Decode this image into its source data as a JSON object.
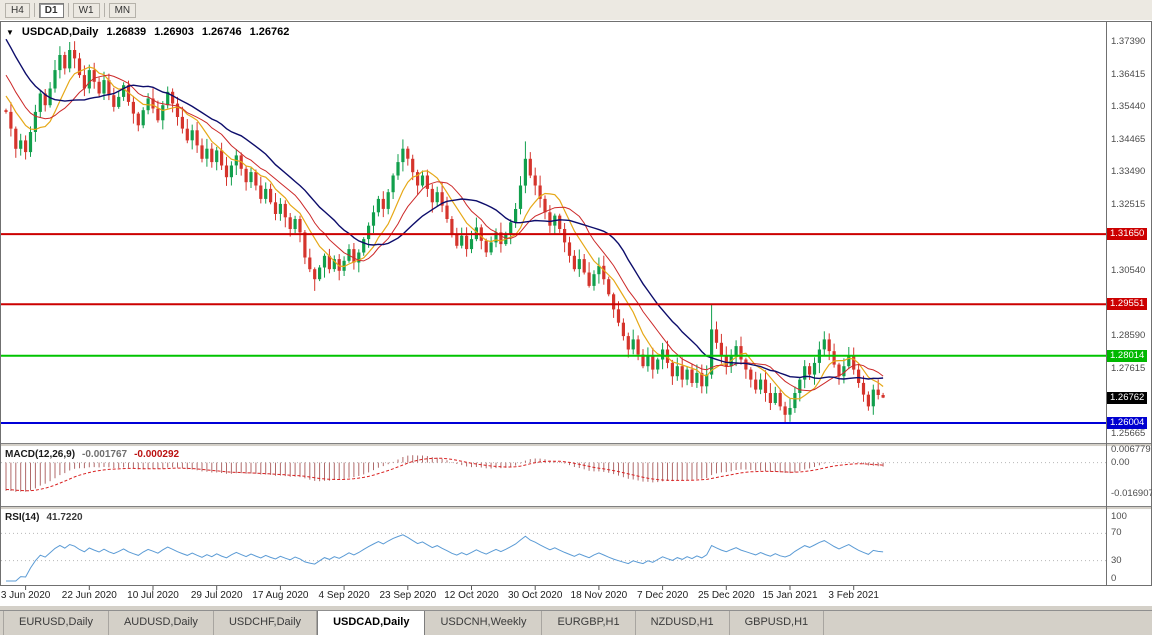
{
  "toolbar": {
    "timeframes": [
      {
        "label": "H4",
        "active": false
      },
      {
        "label": "D1",
        "active": true
      },
      {
        "label": "W1",
        "active": false
      },
      {
        "label": "MN",
        "active": false
      }
    ]
  },
  "chart": {
    "expander": "▼",
    "symbol_title": "USDCAD,Daily",
    "quote": {
      "open": "1.26839",
      "high": "1.26903",
      "low": "1.26746",
      "close": "1.26762"
    },
    "y_axis_labels": [
      {
        "text": "1.37390",
        "price": 1.3739,
        "style": "grid"
      },
      {
        "text": "1.36415",
        "price": 1.36415,
        "style": "grid"
      },
      {
        "text": "1.35440",
        "price": 1.3544,
        "style": "grid"
      },
      {
        "text": "1.34465",
        "price": 1.34465,
        "style": "grid"
      },
      {
        "text": "1.33490",
        "price": 1.3349,
        "style": "grid"
      },
      {
        "text": "1.32515",
        "price": 1.32515,
        "style": "grid"
      },
      {
        "text": "1.31650",
        "price": 1.3165,
        "style": "hline",
        "color": "#cc0000"
      },
      {
        "text": "1.30540",
        "price": 1.3054,
        "style": "grid"
      },
      {
        "text": "1.29551",
        "price": 1.29551,
        "style": "hline",
        "color": "#cc0000"
      },
      {
        "text": "1.28590",
        "price": 1.2859,
        "style": "grid"
      },
      {
        "text": "1.28014",
        "price": 1.28014,
        "style": "hline",
        "color": "#00b800"
      },
      {
        "text": "1.27615",
        "price": 1.27615,
        "style": "grid"
      },
      {
        "text": "1.26762",
        "price": 1.26762,
        "style": "current",
        "color": "#000000"
      },
      {
        "text": "1.26004",
        "price": 1.26004,
        "style": "hline",
        "color": "#0000d0"
      },
      {
        "text": "1.25665",
        "price": 1.25665,
        "style": "grid"
      }
    ],
    "x_axis_labels": [
      {
        "text": "3 Jun 2020",
        "index": 4
      },
      {
        "text": "22 Jun 2020",
        "index": 17
      },
      {
        "text": "10 Jul 2020",
        "index": 30
      },
      {
        "text": "29 Jul 2020",
        "index": 43
      },
      {
        "text": "17 Aug 2020",
        "index": 56
      },
      {
        "text": "4 Sep 2020",
        "index": 69
      },
      {
        "text": "23 Sep 2020",
        "index": 82
      },
      {
        "text": "12 Oct 2020",
        "index": 95
      },
      {
        "text": "30 Oct 2020",
        "index": 108
      },
      {
        "text": "18 Nov 2020",
        "index": 121
      },
      {
        "text": "7 Dec 2020",
        "index": 134
      },
      {
        "text": "25 Dec 2020",
        "index": 147
      },
      {
        "text": "15 Jan 2021",
        "index": 160
      },
      {
        "text": "3 Feb 2021",
        "index": 173
      }
    ]
  },
  "chart_data": {
    "type": "candlestick",
    "title": "USDCAD,Daily",
    "colors": {
      "up": "#119f4c",
      "down": "#d5342c"
    },
    "closes": [
      1.353,
      1.348,
      1.342,
      1.3445,
      1.341,
      1.347,
      1.353,
      1.3585,
      1.355,
      1.36,
      1.3655,
      1.37,
      1.366,
      1.3715,
      1.369,
      1.364,
      1.36,
      1.3655,
      1.362,
      1.3585,
      1.3625,
      1.358,
      1.3545,
      1.3575,
      1.361,
      1.356,
      1.3525,
      1.349,
      1.3535,
      1.357,
      1.354,
      1.3505,
      1.355,
      1.359,
      1.3555,
      1.3515,
      1.348,
      1.3445,
      1.3475,
      1.343,
      1.339,
      1.342,
      1.338,
      1.3415,
      1.337,
      1.3335,
      1.337,
      1.34,
      1.336,
      1.332,
      1.335,
      1.331,
      1.327,
      1.33,
      1.326,
      1.3225,
      1.3255,
      1.3215,
      1.318,
      1.321,
      1.317,
      1.3095,
      1.306,
      1.303,
      1.3065,
      1.31,
      1.306,
      1.309,
      1.3055,
      1.3085,
      1.312,
      1.308,
      1.311,
      1.315,
      1.319,
      1.323,
      1.327,
      1.324,
      1.329,
      1.334,
      1.338,
      1.342,
      1.339,
      1.335,
      1.331,
      1.334,
      1.33,
      1.326,
      1.329,
      1.325,
      1.321,
      1.3165,
      1.313,
      1.316,
      1.312,
      1.315,
      1.3185,
      1.3145,
      1.311,
      1.314,
      1.317,
      1.3135,
      1.3165,
      1.32,
      1.324,
      1.331,
      1.339,
      1.334,
      1.331,
      1.327,
      1.323,
      1.319,
      1.322,
      1.318,
      1.314,
      1.31,
      1.306,
      1.309,
      1.305,
      1.301,
      1.3045,
      1.307,
      1.303,
      1.2985,
      1.294,
      1.29,
      1.286,
      1.282,
      1.285,
      1.2805,
      1.277,
      1.28,
      1.276,
      1.279,
      1.282,
      1.278,
      1.274,
      1.277,
      1.273,
      1.276,
      1.272,
      1.275,
      1.271,
      1.2745,
      1.288,
      1.284,
      1.28,
      1.277,
      1.28,
      1.283,
      1.279,
      1.276,
      1.273,
      1.27,
      1.273,
      1.269,
      1.266,
      1.269,
      1.265,
      1.2625,
      1.2645,
      1.269,
      1.273,
      1.277,
      1.2745,
      1.278,
      1.282,
      1.285,
      1.2815,
      1.2775,
      1.274,
      1.277,
      1.28,
      1.276,
      1.272,
      1.2685,
      1.265,
      1.27,
      1.26839,
      1.26762
    ],
    "warmup_closes": [
      1.43,
      1.427,
      1.4245,
      1.4215,
      1.419,
      1.416,
      1.413,
      1.4105,
      1.4075,
      1.405,
      1.402,
      1.399,
      1.3965,
      1.3935,
      1.391,
      1.388,
      1.385,
      1.3825,
      1.3795,
      1.377,
      1.374,
      1.371,
      1.3685,
      1.3655,
      1.363,
      1.36,
      1.3575,
      1.3555,
      1.354,
      1.3535
    ],
    "wick_overrides": {
      "13": {
        "high": 1.3739
      },
      "63": {
        "low": 1.2995
      },
      "81": {
        "high": 1.3448
      },
      "106": {
        "high": 1.3442
      },
      "144": {
        "high": 1.2957
      },
      "159": {
        "low": 1.26
      },
      "179": {
        "high": 1.26903,
        "low": 1.26746
      }
    },
    "hlines": [
      {
        "price": 1.3165,
        "label": "1.31650",
        "color": "#cc0000"
      },
      {
        "price": 1.29551,
        "label": "1.29551",
        "color": "#cc0000"
      },
      {
        "price": 1.28014,
        "label": "1.28014",
        "color": "#00c400"
      },
      {
        "price": 1.26004,
        "label": "1.26004",
        "color": "#0000d8"
      }
    ],
    "current_price": {
      "price": 1.26762,
      "label": "1.26762"
    },
    "moving_averages": [
      {
        "name": "ma-fast",
        "period": 8,
        "color": "#e6a817",
        "width": 1.2
      },
      {
        "name": "ma-mid",
        "period": 13,
        "color": "#cc2929",
        "width": 1
      },
      {
        "name": "ma-slow",
        "period": 21,
        "color": "#0d0d6b",
        "width": 1.4
      }
    ]
  },
  "macd": {
    "label": "MACD(12,26,9)",
    "value_main": "-0.001767",
    "value_signal": "-0.000292",
    "fast": 12,
    "slow": 26,
    "signal": 9,
    "hist_color": "#b06a6a",
    "signal_color": "#d92121",
    "axis": [
      {
        "text": "0.006779",
        "value": 0.006779
      },
      {
        "text": "0.00",
        "value": 0
      },
      {
        "text": "-0.016907",
        "value": -0.016907
      }
    ]
  },
  "rsi": {
    "label": "RSI(14)",
    "value": "41.7220",
    "period": 14,
    "color": "#5b9bd5",
    "axis": [
      {
        "text": "100",
        "value": 100
      },
      {
        "text": "70",
        "value": 70
      },
      {
        "text": "30",
        "value": 30
      },
      {
        "text": "0",
        "value": 0
      }
    ]
  },
  "tabs": [
    {
      "label": "EURUSD,Daily",
      "active": false
    },
    {
      "label": "AUDUSD,Daily",
      "active": false
    },
    {
      "label": "USDCHF,Daily",
      "active": false
    },
    {
      "label": "USDCAD,Daily",
      "active": true
    },
    {
      "label": "USDCNH,Weekly",
      "active": false
    },
    {
      "label": "EURGBP,H1",
      "active": false
    },
    {
      "label": "NZDUSD,H1",
      "active": false
    },
    {
      "label": "GBPUSD,H1",
      "active": false
    }
  ]
}
